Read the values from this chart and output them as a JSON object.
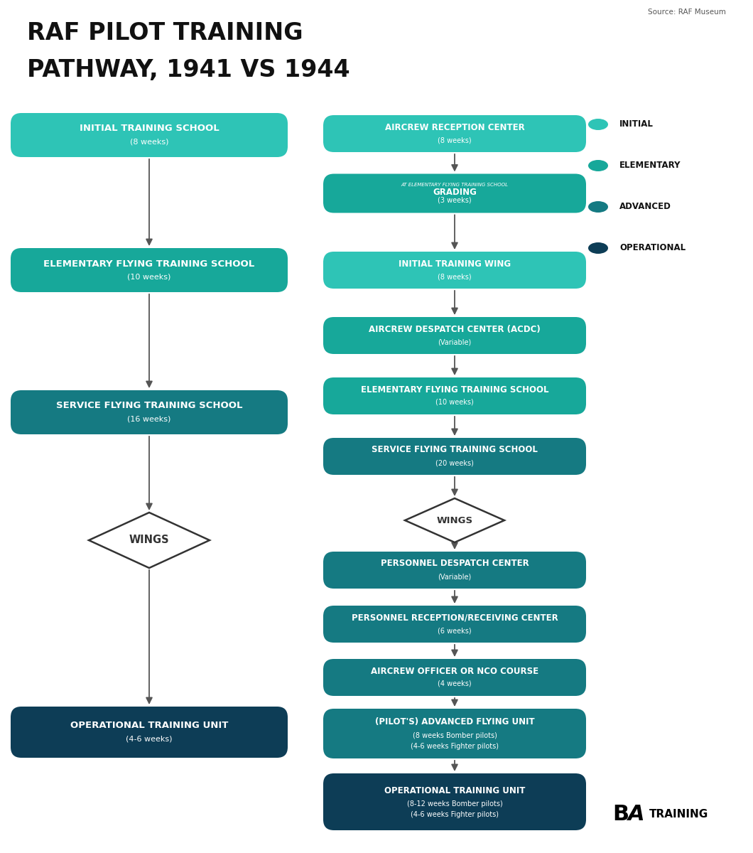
{
  "title_line1": "RAF PILOT TRAINING",
  "title_line2": "PATHWAY, 1941 VS 1944",
  "source": "Source: RAF Museum",
  "bg_color": "#ffffff",
  "title_color": "#111111",
  "arrow_color": "#444444",
  "color_initial": "#2ec4b6",
  "color_elementary": "#17a89a",
  "color_advanced": "#157a82",
  "color_operational": "#0d3d56",
  "color_diamond_border": "#333333",
  "color_diamond_bg": "#ffffff",
  "color_diamond_text": "#111111",
  "left_boxes": [
    {
      "label": "INITIAL TRAINING SCHOOL",
      "sub": "(8 weeks)",
      "color": "initial",
      "type": "box"
    },
    {
      "label": "ELEMENTARY FLYING TRAINING SCHOOL",
      "sub": "(10 weeks)",
      "color": "elementary",
      "type": "box"
    },
    {
      "label": "SERVICE FLYING TRAINING SCHOOL",
      "sub": "(16 weeks)",
      "color": "advanced",
      "type": "box"
    },
    {
      "label": "WINGS",
      "sub": "",
      "color": "diamond",
      "type": "diamond"
    },
    {
      "label": "OPERATIONAL TRAINING UNIT",
      "sub": "(4-6 weeks)",
      "color": "operational",
      "type": "box"
    }
  ],
  "right_boxes": [
    {
      "label": "AIRCREW RECEPTION CENTER",
      "sub": "(8 weeks)",
      "color": "initial",
      "type": "box",
      "sublabel": ""
    },
    {
      "label": "GRADING",
      "sub": "(3 weeks)",
      "color": "elementary",
      "type": "box",
      "sublabel": "AT ELEMENTARY FLYING TRAINING SCHOOL"
    },
    {
      "label": "INITIAL TRAINING WING",
      "sub": "(8 weeks)",
      "color": "initial",
      "type": "box",
      "sublabel": ""
    },
    {
      "label": "AIRCREW DESPATCH CENTER (ACDC)",
      "sub": "(Variable)",
      "color": "elementary",
      "type": "box",
      "sublabel": ""
    },
    {
      "label": "ELEMENTARY FLYING TRAINING SCHOOL",
      "sub": "(10 weeks)",
      "color": "elementary",
      "type": "box",
      "sublabel": ""
    },
    {
      "label": "SERVICE FLYING TRAINING SCHOOL",
      "sub": "(20 weeks)",
      "color": "advanced",
      "type": "box",
      "sublabel": ""
    },
    {
      "label": "WINGS",
      "sub": "",
      "color": "diamond",
      "type": "diamond",
      "sublabel": ""
    },
    {
      "label": "PERSONNEL DESPATCH CENTER",
      "sub": "(Variable)",
      "color": "advanced",
      "type": "box",
      "sublabel": ""
    },
    {
      "label": "PERSONNEL RECEPTION/RECEIVING CENTER",
      "sub": "(6 weeks)",
      "color": "advanced",
      "type": "box",
      "sublabel": ""
    },
    {
      "label": "AIRCREW OFFICER OR NCO COURSE",
      "sub": "(4 weeks)",
      "color": "advanced",
      "type": "box",
      "sublabel": ""
    },
    {
      "label": "(PILOT'S) ADVANCED FLYING UNIT",
      "sub": "(8 weeks Bomber pilots)\n(4-6 weeks Fighter pilots)",
      "color": "advanced",
      "type": "box",
      "sublabel": ""
    },
    {
      "label": "OPERATIONAL TRAINING UNIT",
      "sub": "(8-12 weeks Bomber pilots)\n(4-6 weeks Fighter pilots)",
      "color": "operational",
      "type": "box",
      "sublabel": ""
    }
  ],
  "legend": [
    {
      "label": "INITIAL",
      "color": "initial"
    },
    {
      "label": "ELEMENTARY",
      "color": "elementary"
    },
    {
      "label": "ADVANCED",
      "color": "advanced"
    },
    {
      "label": "OPERATIONAL",
      "color": "operational"
    }
  ]
}
